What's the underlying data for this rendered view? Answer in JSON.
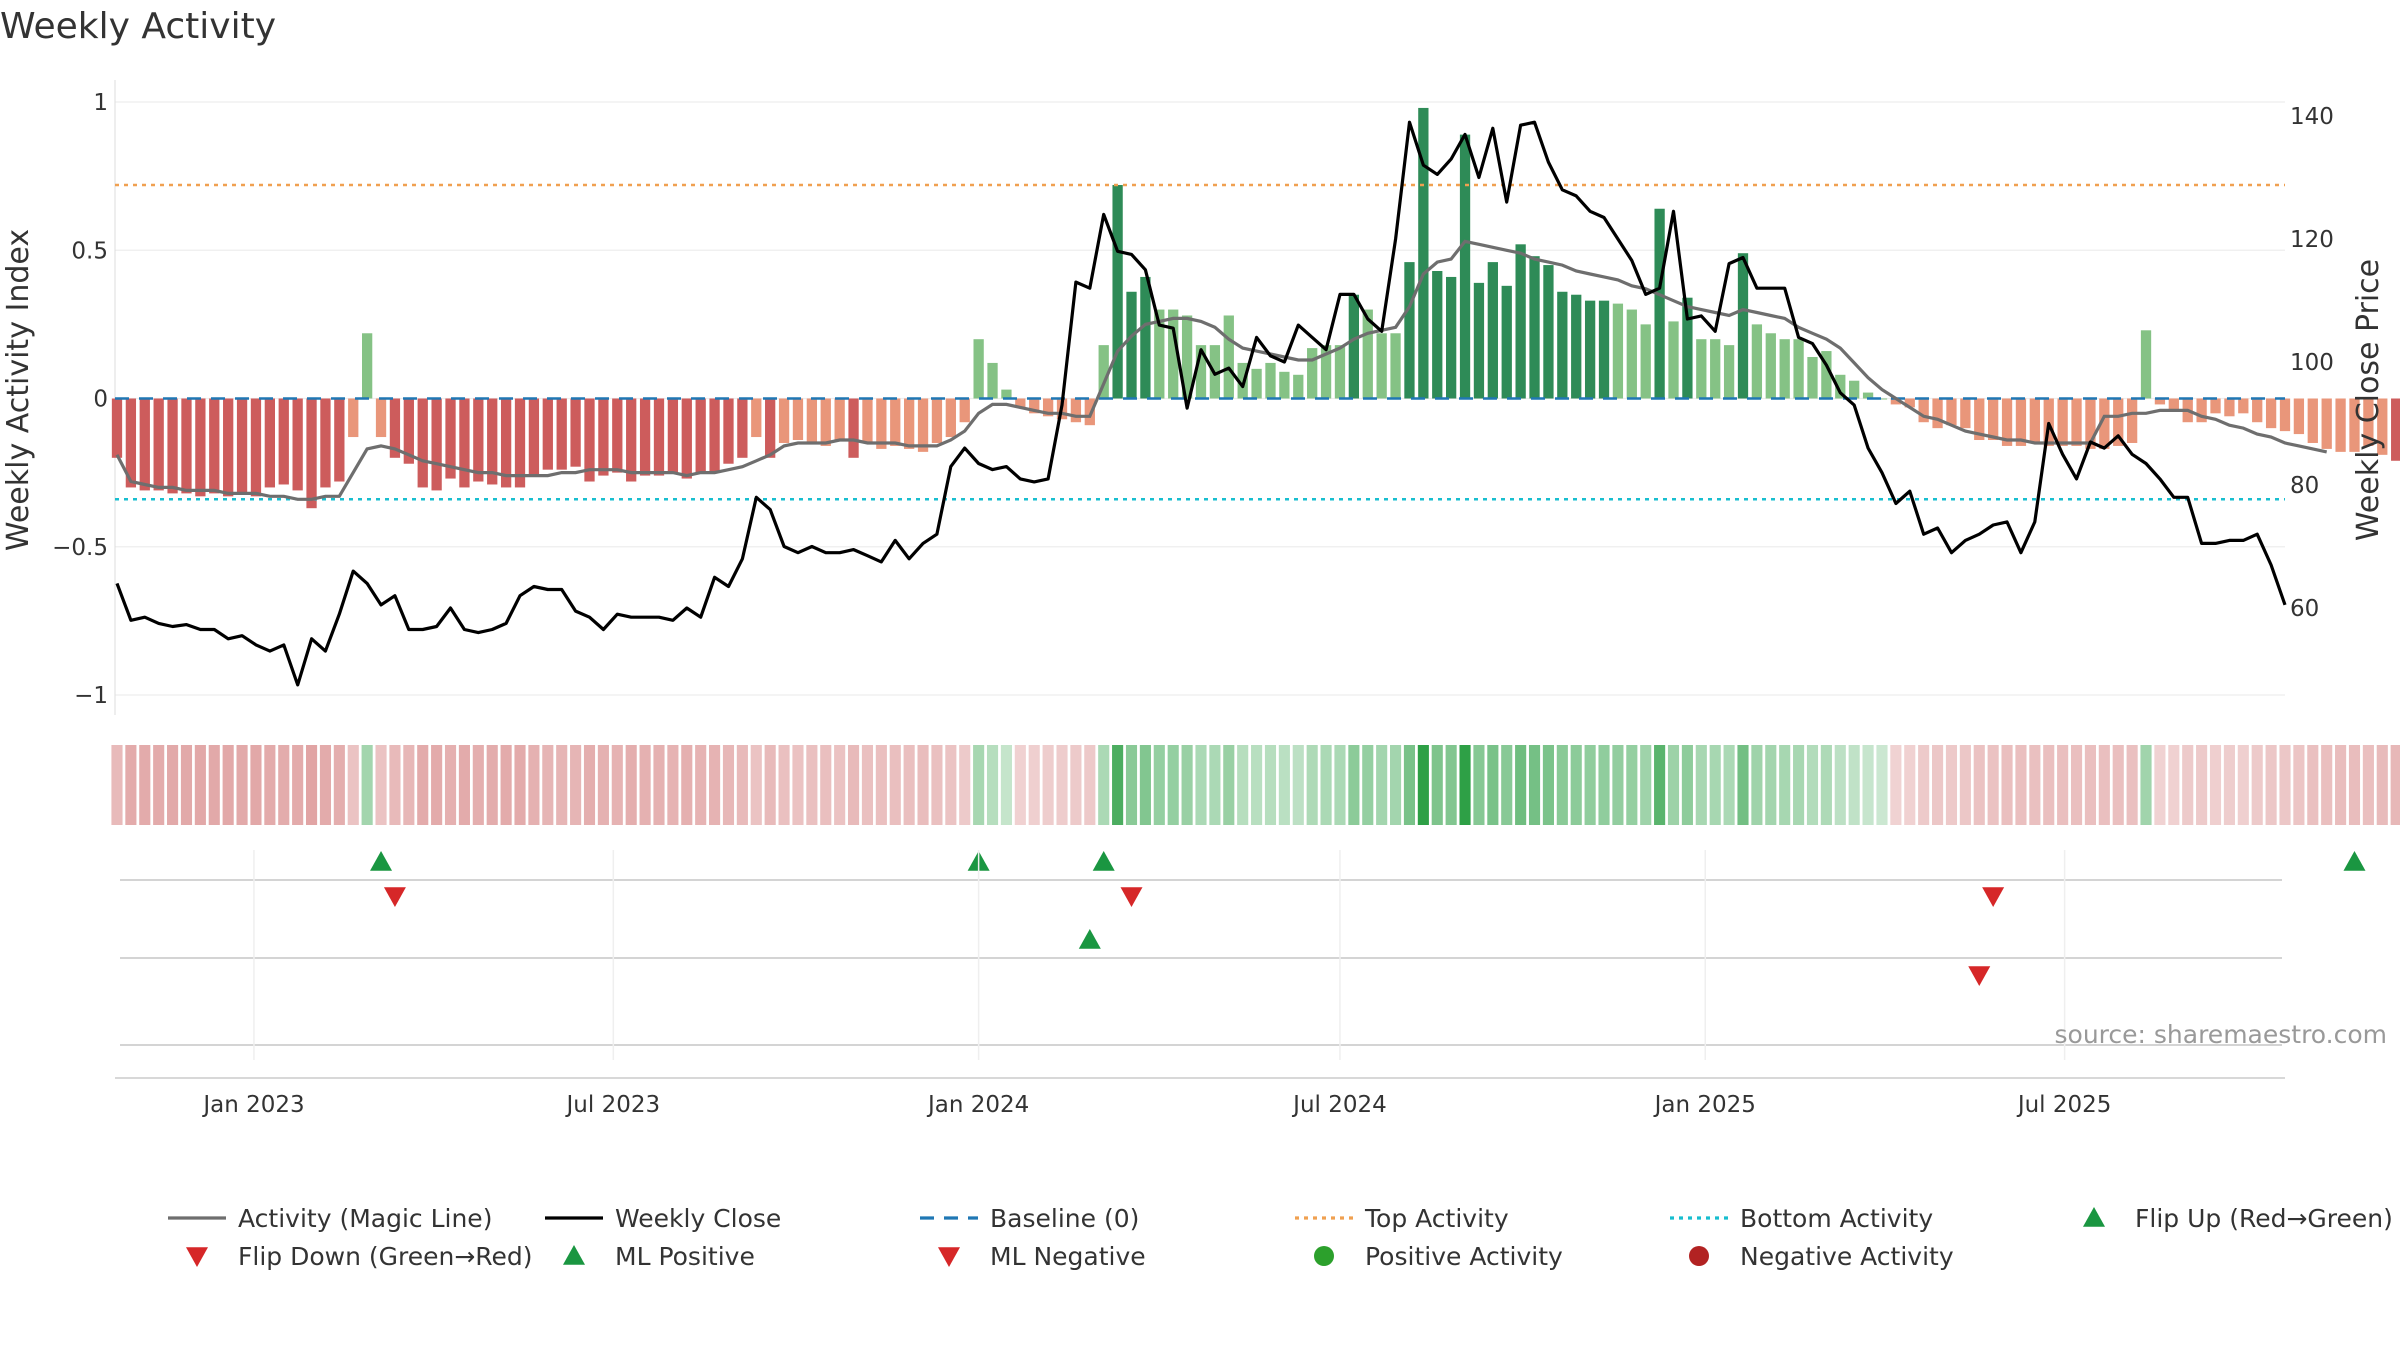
{
  "chart_data": {
    "type": "bar",
    "title": "Weekly Activity",
    "ylabel": "Weekly Activity Index",
    "y2label": "Weekly Close Price",
    "ylim": [
      -1.05,
      1.05
    ],
    "y2lim": [
      40,
      145
    ],
    "y_ticks": [
      {
        "value": 1,
        "label": "1"
      },
      {
        "value": 0.5,
        "label": "0.5"
      },
      {
        "value": 0,
        "label": "0"
      },
      {
        "value": -0.5,
        "label": "−0.5"
      },
      {
        "value": -1,
        "label": "−1"
      }
    ],
    "y2_ticks": [
      {
        "value": 140,
        "label": "140"
      },
      {
        "value": 120,
        "label": "120"
      },
      {
        "value": 100,
        "label": "100"
      },
      {
        "value": 80,
        "label": "80"
      },
      {
        "value": 60,
        "label": "60"
      }
    ],
    "x_ticks": [
      {
        "date": "2023-01-01",
        "label": "Jan 2023"
      },
      {
        "date": "2023-07-01",
        "label": "Jul 2023"
      },
      {
        "date": "2024-01-01",
        "label": "Jan 2024"
      },
      {
        "date": "2024-07-01",
        "label": "Jul 2024"
      },
      {
        "date": "2025-01-01",
        "label": "Jan 2025"
      },
      {
        "date": "2025-07-01",
        "label": "Jul 2025"
      }
    ],
    "x_range": [
      "2022-10-23",
      "2025-10-20"
    ],
    "first_week": "2022-10-24",
    "top_activity": 0.72,
    "bottom_activity": -0.34,
    "baseline": 0,
    "weekly_activity": [
      -0.2,
      -0.3,
      -0.31,
      -0.31,
      -0.32,
      -0.32,
      -0.33,
      -0.32,
      -0.33,
      -0.32,
      -0.33,
      -0.3,
      -0.29,
      -0.31,
      -0.37,
      -0.3,
      -0.28,
      -0.13,
      0.22,
      -0.13,
      -0.2,
      -0.22,
      -0.3,
      -0.31,
      -0.27,
      -0.3,
      -0.28,
      -0.29,
      -0.3,
      -0.3,
      -0.26,
      -0.24,
      -0.24,
      -0.23,
      -0.28,
      -0.26,
      -0.25,
      -0.28,
      -0.26,
      -0.26,
      -0.25,
      -0.27,
      -0.25,
      -0.25,
      -0.22,
      -0.2,
      -0.13,
      -0.2,
      -0.15,
      -0.14,
      -0.15,
      -0.16,
      -0.14,
      -0.2,
      -0.15,
      -0.17,
      -0.16,
      -0.17,
      -0.18,
      -0.15,
      -0.13,
      -0.08,
      0.2,
      0.12,
      0.03,
      -0.03,
      -0.05,
      -0.06,
      -0.07,
      -0.08,
      -0.09,
      0.18,
      0.72,
      0.36,
      0.41,
      0.3,
      0.3,
      0.28,
      0.18,
      0.18,
      0.28,
      0.12,
      0.1,
      0.12,
      0.09,
      0.08,
      0.17,
      0.18,
      0.18,
      0.35,
      0.3,
      0.22,
      0.22,
      0.46,
      0.98,
      0.43,
      0.41,
      0.89,
      0.39,
      0.46,
      0.38,
      0.52,
      0.48,
      0.45,
      0.36,
      0.35,
      0.33,
      0.33,
      0.32,
      0.3,
      0.25,
      0.64,
      0.26,
      0.34,
      0.2,
      0.2,
      0.18,
      0.49,
      0.25,
      0.22,
      0.2,
      0.2,
      0.14,
      0.16,
      0.08,
      0.06,
      0.02,
      0.0,
      -0.02,
      -0.03,
      -0.08,
      -0.1,
      -0.09,
      -0.1,
      -0.14,
      -0.14,
      -0.16,
      -0.16,
      -0.15,
      -0.16,
      -0.16,
      -0.16,
      -0.17,
      -0.17,
      -0.16,
      -0.15,
      0.23,
      -0.02,
      -0.04,
      -0.08,
      -0.08,
      -0.05,
      -0.06,
      -0.05,
      -0.08,
      -0.1,
      -0.11,
      -0.12,
      -0.15,
      -0.17,
      -0.18,
      -0.18,
      -0.16,
      -0.19,
      -0.21,
      -0.25
    ],
    "weekly_close": [
      64,
      58,
      58.5,
      57.5,
      57,
      57.3,
      56.5,
      56.5,
      55,
      55.5,
      54,
      53,
      54,
      47.5,
      55,
      53,
      59,
      66,
      64,
      60.5,
      62,
      56.5,
      56.5,
      57,
      60,
      56.5,
      56,
      56.5,
      57.5,
      62,
      63.5,
      63,
      63,
      59.5,
      58.5,
      56.5,
      59,
      58.5,
      58.5,
      58.5,
      58,
      60,
      58.5,
      65,
      63.5,
      68,
      78,
      76,
      70,
      69,
      70,
      69,
      69,
      69.5,
      68.5,
      67.5,
      71,
      68,
      70.5,
      72,
      83,
      86,
      83.5,
      82.5,
      83,
      81,
      80.5,
      81,
      93,
      113,
      112,
      124,
      118,
      117.5,
      115,
      106,
      105.5,
      92.5,
      102,
      98,
      99,
      96,
      104,
      101,
      100,
      106,
      104,
      102,
      111,
      111,
      107,
      105,
      120,
      139,
      132,
      130.5,
      133,
      137,
      130,
      138,
      126,
      138.5,
      139,
      132.5,
      128,
      127,
      124.5,
      123.5,
      120,
      116.5,
      111,
      112,
      124.5,
      107,
      107.5,
      105,
      116,
      117,
      112,
      112,
      112,
      104,
      103,
      99.5,
      95,
      93,
      86,
      82,
      77,
      79,
      72,
      73,
      69,
      71,
      72,
      73.5,
      74,
      69,
      74,
      90,
      85,
      81,
      87,
      86,
      88,
      85,
      83.5,
      81,
      78,
      78,
      70.5,
      70.5,
      71,
      71,
      72,
      67,
      60.5
    ],
    "magic_line": [
      -0.19,
      -0.28,
      -0.29,
      -0.3,
      -0.3,
      -0.31,
      -0.31,
      -0.31,
      -0.32,
      -0.32,
      -0.32,
      -0.33,
      -0.33,
      -0.34,
      -0.34,
      -0.33,
      -0.33,
      -0.25,
      -0.17,
      -0.16,
      -0.17,
      -0.19,
      -0.21,
      -0.22,
      -0.23,
      -0.24,
      -0.25,
      -0.25,
      -0.26,
      -0.26,
      -0.26,
      -0.26,
      -0.25,
      -0.25,
      -0.24,
      -0.24,
      -0.24,
      -0.25,
      -0.25,
      -0.25,
      -0.25,
      -0.26,
      -0.25,
      -0.25,
      -0.24,
      -0.23,
      -0.21,
      -0.19,
      -0.16,
      -0.15,
      -0.15,
      -0.15,
      -0.14,
      -0.14,
      -0.15,
      -0.15,
      -0.15,
      -0.16,
      -0.16,
      -0.16,
      -0.14,
      -0.11,
      -0.05,
      -0.02,
      -0.02,
      -0.03,
      -0.04,
      -0.05,
      -0.05,
      -0.06,
      -0.06,
      0.05,
      0.16,
      0.21,
      0.25,
      0.26,
      0.27,
      0.27,
      0.26,
      0.24,
      0.2,
      0.17,
      0.16,
      0.15,
      0.14,
      0.13,
      0.13,
      0.15,
      0.17,
      0.2,
      0.22,
      0.23,
      0.24,
      0.31,
      0.42,
      0.46,
      0.47,
      0.53,
      0.52,
      0.51,
      0.5,
      0.49,
      0.47,
      0.46,
      0.45,
      0.43,
      0.42,
      0.41,
      0.4,
      0.38,
      0.37,
      0.35,
      0.33,
      0.31,
      0.3,
      0.29,
      0.28,
      0.3,
      0.29,
      0.28,
      0.27,
      0.24,
      0.22,
      0.2,
      0.17,
      0.12,
      0.07,
      0.03,
      0.0,
      -0.03,
      -0.06,
      -0.07,
      -0.09,
      -0.11,
      -0.12,
      -0.13,
      -0.14,
      -0.14,
      -0.15,
      -0.15,
      -0.15,
      -0.15,
      -0.15,
      -0.06,
      -0.06,
      -0.05,
      -0.05,
      -0.04,
      -0.04,
      -0.04,
      -0.06,
      -0.07,
      -0.09,
      -0.1,
      -0.12,
      -0.13,
      -0.15,
      -0.16,
      -0.17,
      -0.18
    ],
    "flip_up_weeks": [
      19,
      62,
      71,
      161,
      167
    ],
    "flip_down_weeks": [
      20,
      73,
      135,
      175
    ],
    "ml_positive_weeks": [
      70
    ],
    "ml_negative_weeks": [
      134
    ],
    "legend": [
      {
        "label": "Activity (Magic Line)",
        "kind": "line",
        "color": "#6e6e6e",
        "dash": "solid"
      },
      {
        "label": "Weekly Close",
        "kind": "line",
        "color": "#000000",
        "dash": "solid"
      },
      {
        "label": "Baseline (0)",
        "kind": "line",
        "color": "#1f77b4",
        "dash": "dashed"
      },
      {
        "label": "Top Activity",
        "kind": "line",
        "color": "#f0a050",
        "dash": "dotted"
      },
      {
        "label": "Bottom Activity",
        "kind": "line",
        "color": "#17becf",
        "dash": "dotted"
      },
      {
        "label": "Flip Up (Red→Green)",
        "kind": "triangle-up",
        "color": "#1a9641"
      },
      {
        "label": "Flip Down (Green→Red)",
        "kind": "triangle-down",
        "color": "#d62728"
      },
      {
        "label": "ML Positive",
        "kind": "triangle-up",
        "color": "#1a9641"
      },
      {
        "label": "ML Negative",
        "kind": "triangle-down",
        "color": "#d62728"
      },
      {
        "label": "Positive Activity",
        "kind": "circle",
        "color": "#2ca02c"
      },
      {
        "label": "Negative Activity",
        "kind": "circle",
        "color": "#b22222"
      }
    ],
    "colors": {
      "strong_pos": "#2e8b57",
      "weak_pos": "#85c285",
      "strong_neg": "#cd5c5c",
      "weak_neg": "#e9967a",
      "price": "#000000",
      "magic": "#6e6e6e",
      "grid": "#eeeeee"
    },
    "source": "source: sharemaestro.com"
  }
}
